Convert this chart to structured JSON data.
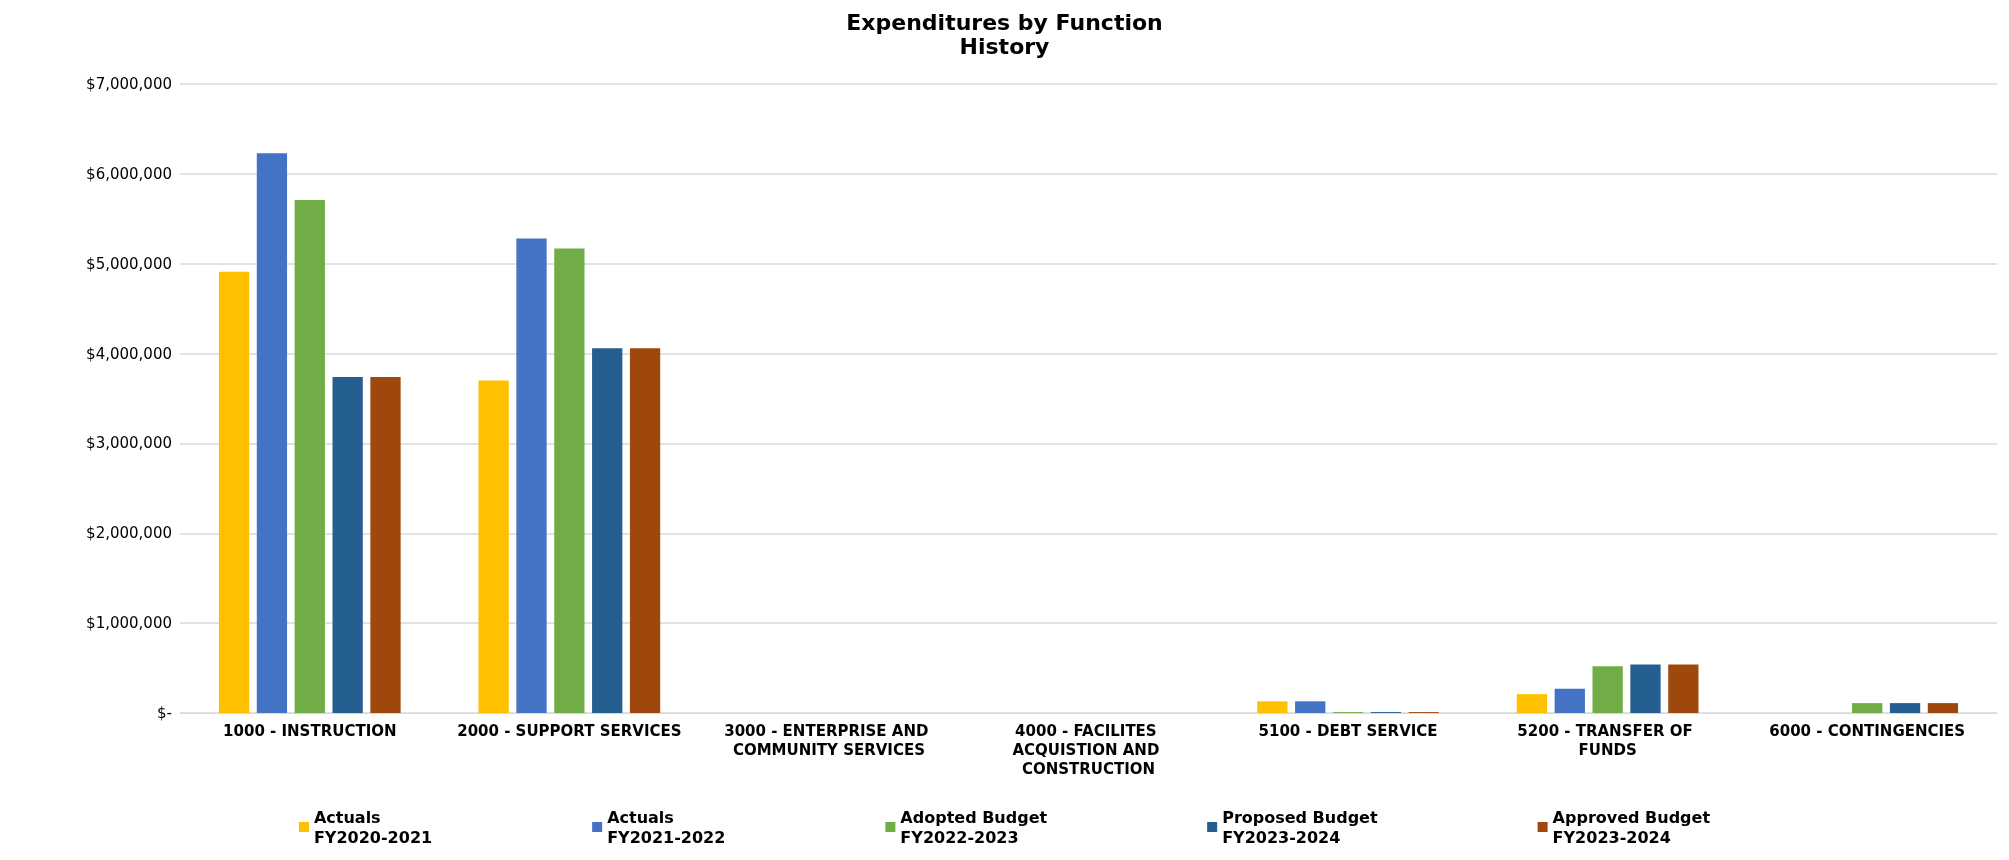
{
  "chart_data": {
    "type": "bar",
    "title": "Expenditures by Function",
    "subtitle": "History",
    "categories": [
      "1000 - INSTRUCTION",
      "2000 - SUPPORT SERVICES",
      "3000 - ENTERPRISE AND COMMUNITY SERVICES",
      "4000 - FACILITES ACQUISTION AND CONSTRUCTION",
      "5100 - DEBT SERVICE",
      "5200 - TRANSFER OF FUNDS",
      "6000 - CONTINGENCIES"
    ],
    "series": [
      {
        "name": "Actuals\nFY2020-2021",
        "color": "#ffc000",
        "values": [
          4910000,
          3700000,
          0,
          0,
          130000,
          210000,
          0
        ]
      },
      {
        "name": "Actuals\nFY2021-2022",
        "color": "#4472c4",
        "values": [
          6230000,
          5280000,
          0,
          0,
          130000,
          270000,
          0
        ]
      },
      {
        "name": "Adopted Budget\nFY2022-2023",
        "color": "#70ad47",
        "values": [
          5710000,
          5170000,
          0,
          0,
          10000,
          520000,
          110000
        ]
      },
      {
        "name": "Proposed Budget\nFY2023-2024",
        "color": "#255e91",
        "values": [
          3740000,
          4060000,
          0,
          0,
          10000,
          540000,
          110000
        ]
      },
      {
        "name": "Approved Budget\nFY2023-2024",
        "color": "#9e480e",
        "values": [
          3740000,
          4060000,
          0,
          0,
          10000,
          540000,
          110000
        ]
      }
    ],
    "ylim": [
      0,
      7000000
    ],
    "yticks": [
      {
        "value": 0,
        "label": "$-"
      },
      {
        "value": 1000000,
        "label": "$1,000,000"
      },
      {
        "value": 2000000,
        "label": "$2,000,000"
      },
      {
        "value": 3000000,
        "label": "$3,000,000"
      },
      {
        "value": 4000000,
        "label": "$4,000,000"
      },
      {
        "value": 5000000,
        "label": "$5,000,000"
      },
      {
        "value": 6000000,
        "label": "$6,000,000"
      },
      {
        "value": 7000000,
        "label": "$7,000,000"
      }
    ],
    "grid": "y",
    "legend": "bottom"
  }
}
